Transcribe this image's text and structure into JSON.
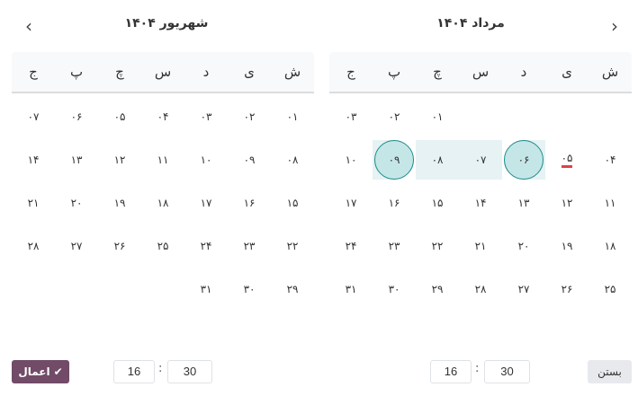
{
  "weekdays": [
    "ش",
    "ی",
    "د",
    "س",
    "چ",
    "پ",
    "ج"
  ],
  "right_calendar": {
    "title": "مرداد ۱۴۰۴",
    "offset": 4,
    "days": [
      "۰۱",
      "۰۲",
      "۰۳",
      "۰۴",
      "۰۵",
      "۰۶",
      "۰۷",
      "۰۸",
      "۰۹",
      "۱۰",
      "۱۱",
      "۱۲",
      "۱۳",
      "۱۴",
      "۱۵",
      "۱۶",
      "۱۷",
      "۱۸",
      "۱۹",
      "۲۰",
      "۲۱",
      "۲۲",
      "۲۳",
      "۲۴",
      "۲۵",
      "۲۶",
      "۲۷",
      "۲۸",
      "۲۹",
      "۳۰",
      "۳۱"
    ],
    "today": "۰۵",
    "range_start": "۰۶",
    "range_end": "۰۹"
  },
  "left_calendar": {
    "title": "شهریور ۱۴۰۴",
    "offset": 0,
    "days": [
      "۰۱",
      "۰۲",
      "۰۳",
      "۰۴",
      "۰۵",
      "۰۶",
      "۰۷",
      "۰۸",
      "۰۹",
      "۱۰",
      "۱۱",
      "۱۲",
      "۱۳",
      "۱۴",
      "۱۵",
      "۱۶",
      "۱۷",
      "۱۸",
      "۱۹",
      "۲۰",
      "۲۱",
      "۲۲",
      "۲۳",
      "۲۴",
      "۲۵",
      "۲۶",
      "۲۷",
      "۲۸",
      "۲۹",
      "۳۰",
      "۳۱"
    ]
  },
  "nav": {
    "next_icon": "chevron-right",
    "prev_icon": "chevron-left"
  },
  "time_start": {
    "hour": "16",
    "minute": "30",
    "separator": ":"
  },
  "time_end": {
    "hour": "16",
    "minute": "30",
    "separator": ":"
  },
  "buttons": {
    "apply": "اعمال",
    "apply_icon": "✔",
    "close": "بستن"
  },
  "colors": {
    "accent": "#714b67",
    "range": "#e6f2f3",
    "selected": "#c5e6e7",
    "selected_border": "#1a8a8a",
    "today_marker": "#e0404a"
  }
}
